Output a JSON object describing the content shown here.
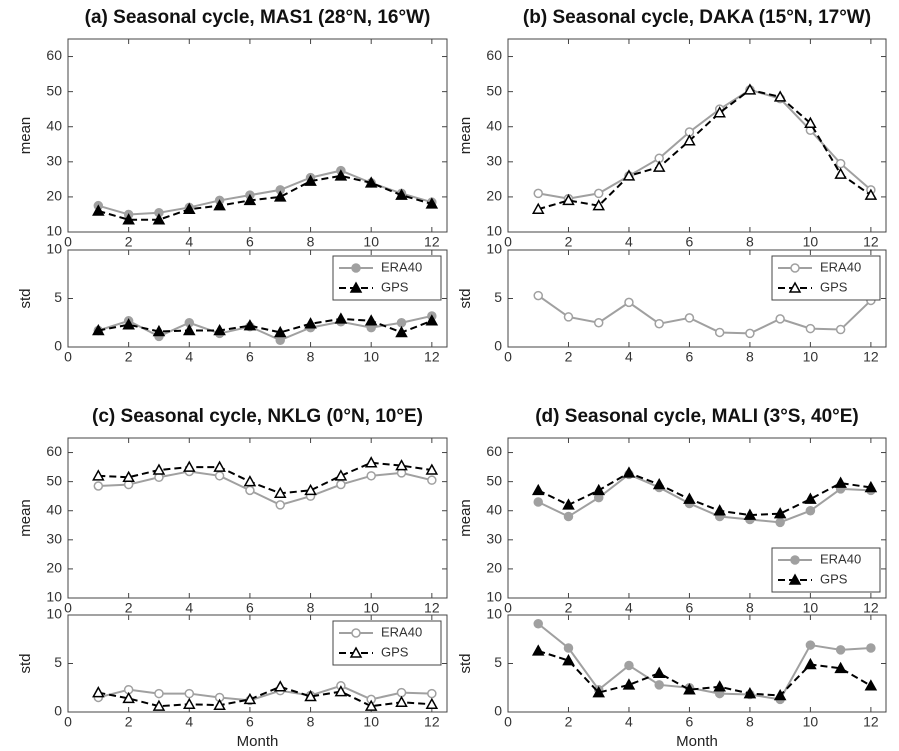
{
  "chart_data": [
    {
      "type": "line",
      "title": "(a) Seasonal cycle, MAS1 (28°N, 16°W)",
      "ylabel": "mean",
      "marker_fill": true,
      "x": [
        1,
        2,
        3,
        4,
        5,
        6,
        7,
        8,
        9,
        10,
        11,
        12
      ],
      "xlim": [
        0,
        12.5
      ],
      "xticks": [
        0,
        2,
        4,
        6,
        8,
        10,
        12
      ],
      "ylim": [
        10,
        65
      ],
      "yticks": [
        10,
        20,
        30,
        40,
        50,
        60
      ],
      "series": [
        {
          "color": "#a0a0a0",
          "linestyle": "solid",
          "marker": "circle",
          "values": [
            17.5,
            15,
            15.5,
            17,
            19,
            20.5,
            22,
            25.5,
            27.5,
            24,
            21,
            18.5
          ]
        },
        {
          "color": "#000000",
          "linestyle": "dashed",
          "marker": "triangle",
          "values": [
            16,
            13.5,
            13.5,
            16.5,
            17.5,
            19,
            20,
            24.5,
            26,
            24,
            20.5,
            18
          ]
        }
      ]
    },
    {
      "type": "line",
      "ylabel": "std",
      "marker_fill": true,
      "legend": "upper right",
      "x": [
        1,
        2,
        3,
        4,
        5,
        6,
        7,
        8,
        9,
        10,
        11,
        12
      ],
      "xlim": [
        0,
        12.5
      ],
      "xticks": [
        0,
        2,
        4,
        6,
        8,
        10,
        12
      ],
      "ylim": [
        0,
        10
      ],
      "yticks": [
        0,
        5,
        10
      ],
      "series": [
        {
          "name": "ERA40",
          "color": "#a0a0a0",
          "linestyle": "solid",
          "marker": "circle",
          "values": [
            1.7,
            2.7,
            1.1,
            2.5,
            1.4,
            2.1,
            0.7,
            2.0,
            2.6,
            2.0,
            2.5,
            3.2
          ]
        },
        {
          "name": "GPS",
          "color": "#000000",
          "linestyle": "dashed",
          "marker": "triangle",
          "values": [
            1.7,
            2.3,
            1.6,
            1.7,
            1.7,
            2.2,
            1.5,
            2.4,
            2.9,
            2.7,
            1.5,
            2.7
          ]
        }
      ]
    },
    {
      "type": "line",
      "title": "(b) Seasonal cycle, DAKA (15°N, 17°W)",
      "ylabel": "mean",
      "marker_fill": false,
      "x": [
        1,
        2,
        3,
        4,
        5,
        6,
        7,
        8,
        9,
        10,
        11,
        12
      ],
      "xlim": [
        0,
        12.5
      ],
      "xticks": [
        0,
        2,
        4,
        6,
        8,
        10,
        12
      ],
      "ylim": [
        10,
        65
      ],
      "yticks": [
        10,
        20,
        30,
        40,
        50,
        60
      ],
      "series": [
        {
          "color": "#a0a0a0",
          "linestyle": "solid",
          "marker": "circle",
          "values": [
            21,
            19.5,
            21,
            26,
            31,
            38.5,
            45,
            50.5,
            48,
            39,
            29.5,
            22
          ]
        },
        {
          "color": "#000000",
          "linestyle": "dashed",
          "marker": "triangle",
          "values": [
            16.5,
            19,
            17.5,
            26,
            28.5,
            36,
            44,
            50.5,
            48.5,
            41,
            26.5,
            20.5
          ]
        }
      ]
    },
    {
      "type": "line",
      "ylabel": "std",
      "marker_fill": false,
      "legend": "upper right",
      "x": [
        1,
        2,
        3,
        4,
        5,
        6,
        7,
        8,
        9,
        10,
        11,
        12
      ],
      "xlim": [
        0,
        12.5
      ],
      "xticks": [
        0,
        2,
        4,
        6,
        8,
        10,
        12
      ],
      "ylim": [
        0,
        10
      ],
      "yticks": [
        0,
        5,
        10
      ],
      "series": [
        {
          "name": "ERA40",
          "color": "#a0a0a0",
          "linestyle": "solid",
          "marker": "circle",
          "values": [
            5.3,
            3.1,
            2.5,
            4.6,
            2.4,
            3.0,
            1.5,
            1.4,
            2.9,
            1.9,
            1.8,
            4.8
          ]
        },
        {
          "name": "GPS",
          "color": "#000000",
          "linestyle": "dashed",
          "marker": "triangle",
          "values": [
            null,
            null,
            null,
            null,
            null,
            null,
            null,
            null,
            null,
            null,
            null,
            null
          ]
        }
      ]
    },
    {
      "type": "line",
      "title": "(c) Seasonal cycle, NKLG (0°N, 10°E)",
      "ylabel": "mean",
      "marker_fill": false,
      "x": [
        1,
        2,
        3,
        4,
        5,
        6,
        7,
        8,
        9,
        10,
        11,
        12
      ],
      "xlim": [
        0,
        12.5
      ],
      "xticks": [
        0,
        2,
        4,
        6,
        8,
        10,
        12
      ],
      "ylim": [
        10,
        65
      ],
      "yticks": [
        10,
        20,
        30,
        40,
        50,
        60
      ],
      "series": [
        {
          "color": "#a0a0a0",
          "linestyle": "solid",
          "marker": "circle",
          "values": [
            48.5,
            49,
            51.5,
            53.5,
            52,
            47,
            42,
            45,
            49,
            52,
            53,
            50.5
          ]
        },
        {
          "color": "#000000",
          "linestyle": "dashed",
          "marker": "triangle",
          "values": [
            52,
            51.5,
            54,
            55,
            55,
            50,
            46,
            47,
            52,
            56.5,
            55.5,
            54
          ]
        }
      ]
    },
    {
      "type": "line",
      "ylabel": "std",
      "xlabel": "Month",
      "marker_fill": false,
      "legend": "upper right",
      "x": [
        1,
        2,
        3,
        4,
        5,
        6,
        7,
        8,
        9,
        10,
        11,
        12
      ],
      "xlim": [
        0,
        12.5
      ],
      "xticks": [
        0,
        2,
        4,
        6,
        8,
        10,
        12
      ],
      "ylim": [
        0,
        10
      ],
      "yticks": [
        0,
        5,
        10
      ],
      "series": [
        {
          "name": "ERA40",
          "color": "#a0a0a0",
          "linestyle": "solid",
          "marker": "circle",
          "values": [
            1.5,
            2.3,
            1.9,
            1.9,
            1.5,
            1.2,
            2.2,
            1.7,
            2.7,
            1.3,
            2.0,
            1.9
          ]
        },
        {
          "name": "GPS",
          "color": "#000000",
          "linestyle": "dashed",
          "marker": "triangle",
          "values": [
            2.0,
            1.4,
            0.6,
            0.8,
            0.7,
            1.3,
            2.6,
            1.6,
            2.1,
            0.6,
            1.0,
            0.8
          ]
        }
      ]
    },
    {
      "type": "line",
      "title": "(d) Seasonal cycle, MALI (3°S, 40°E)",
      "ylabel": "mean",
      "marker_fill": true,
      "legend": "lower right",
      "x": [
        1,
        2,
        3,
        4,
        5,
        6,
        7,
        8,
        9,
        10,
        11,
        12
      ],
      "xlim": [
        0,
        12.5
      ],
      "xticks": [
        0,
        2,
        4,
        6,
        8,
        10,
        12
      ],
      "ylim": [
        10,
        65
      ],
      "yticks": [
        10,
        20,
        30,
        40,
        50,
        60
      ],
      "series": [
        {
          "name": "ERA40",
          "color": "#a0a0a0",
          "linestyle": "solid",
          "marker": "circle",
          "values": [
            43,
            38,
            44.5,
            52.5,
            48,
            42.5,
            38,
            37,
            36,
            40,
            47.5,
            47
          ]
        },
        {
          "name": "GPS",
          "color": "#000000",
          "linestyle": "dashed",
          "marker": "triangle",
          "values": [
            47,
            42,
            47,
            53,
            49,
            44,
            40,
            38.5,
            39,
            44,
            49.5,
            48
          ]
        }
      ]
    },
    {
      "type": "line",
      "ylabel": "std",
      "xlabel": "Month",
      "marker_fill": true,
      "x": [
        1,
        2,
        3,
        4,
        5,
        6,
        7,
        8,
        9,
        10,
        11,
        12
      ],
      "xlim": [
        0,
        12.5
      ],
      "xticks": [
        0,
        2,
        4,
        6,
        8,
        10,
        12
      ],
      "ylim": [
        0,
        10
      ],
      "yticks": [
        0,
        5,
        10
      ],
      "series": [
        {
          "color": "#a0a0a0",
          "linestyle": "solid",
          "marker": "circle",
          "values": [
            9.1,
            6.6,
            2.3,
            4.8,
            2.8,
            2.5,
            1.9,
            1.8,
            1.3,
            6.9,
            6.4,
            6.6
          ]
        },
        {
          "color": "#000000",
          "linestyle": "dashed",
          "marker": "triangle",
          "values": [
            6.3,
            5.3,
            2.0,
            2.8,
            4.0,
            2.3,
            2.6,
            1.9,
            1.7,
            4.9,
            4.5,
            2.7
          ]
        }
      ]
    }
  ]
}
